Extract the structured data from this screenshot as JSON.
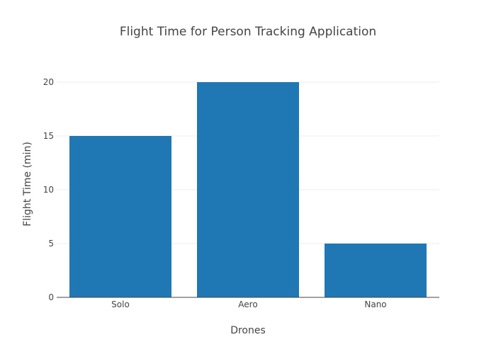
{
  "chart_data": {
    "type": "bar",
    "title": "Flight Time for Person Tracking Application",
    "xlabel": "Drones",
    "ylabel": "Flight Time (min)",
    "categories": [
      "Solo",
      "Aero",
      "Nano"
    ],
    "values": [
      15,
      20,
      5
    ],
    "ylim": [
      0,
      20
    ],
    "yticks": [
      0,
      5,
      10,
      15,
      20
    ],
    "grid": true,
    "bar_color": "#1f77b4"
  }
}
